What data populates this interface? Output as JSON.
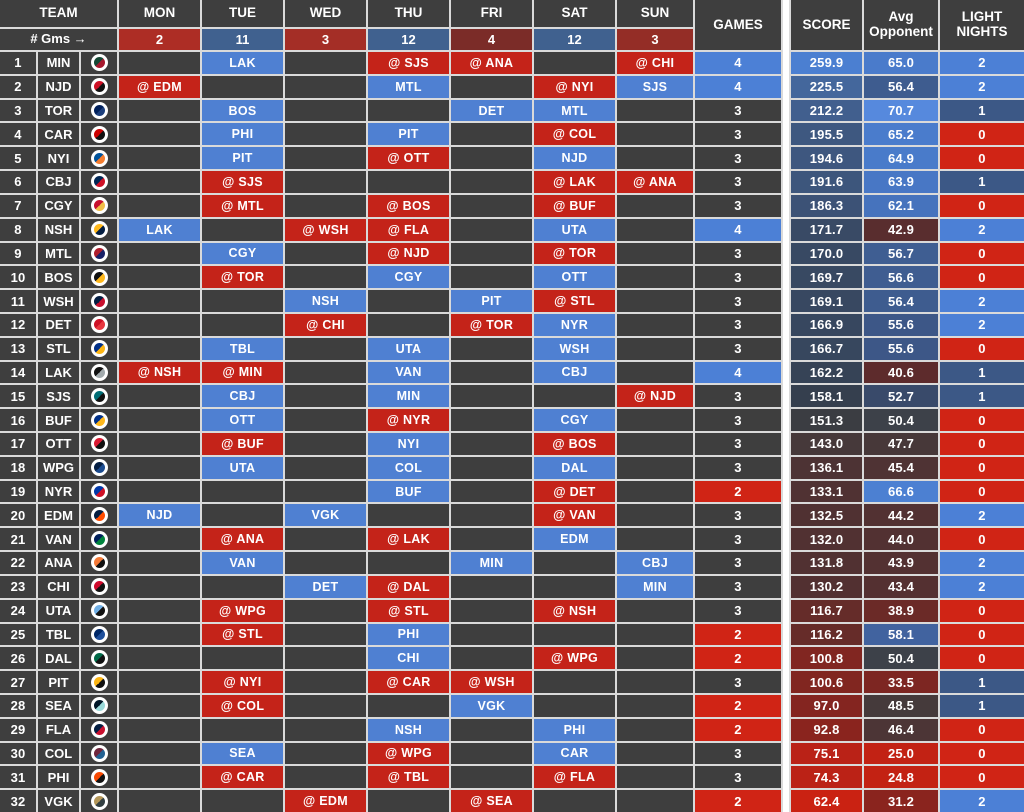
{
  "header": {
    "team_label": "TEAM",
    "gms_label": "# Gms →",
    "days": [
      "MON",
      "TUE",
      "WED",
      "THU",
      "FRI",
      "SAT",
      "SUN"
    ],
    "day_counts": [
      "2",
      "11",
      "3",
      "12",
      "4",
      "12",
      "3"
    ],
    "day_count_colors": [
      "#ad2d25",
      "#40618f",
      "#a42e26",
      "#40618f",
      "#7b2c28",
      "#40618f",
      "#942d26"
    ],
    "games_label": "GAMES",
    "score_label": "SCORE",
    "avg_opponent_label": "Avg Opponent",
    "light_nights_label": "LIGHT NIGHTS"
  },
  "colors": {
    "home": "#4f80d2",
    "away": "#c42319",
    "cell_bg": "#3e3e3e",
    "grid_line": "#dadada",
    "games_high": "#4c80d6",
    "games_low": "#d02415",
    "light_high": "#4c80d6",
    "light_mid": "#3c5886",
    "light_low": "#d02415"
  },
  "rows": [
    {
      "rank": "1",
      "team": "MIN",
      "logo": [
        "#154734",
        "#a6192e"
      ],
      "days": [
        null,
        {
          "opp": "LAK"
        },
        null,
        {
          "opp": "SJS",
          "away": true
        },
        {
          "opp": "ANA",
          "away": true
        },
        null,
        {
          "opp": "CHI",
          "away": true
        }
      ],
      "games": "4",
      "games_bg": "#4c80d6",
      "score": "259.9",
      "score_bg": "#4b7fd1",
      "avg": "65.0",
      "avg_bg": "#4a7bcb",
      "light": "2",
      "light_bg": "#4c80d6"
    },
    {
      "rank": "2",
      "team": "NJD",
      "logo": [
        "#ce1126",
        "#111111"
      ],
      "days": [
        {
          "opp": "EDM",
          "away": true
        },
        null,
        null,
        {
          "opp": "MTL"
        },
        null,
        {
          "opp": "NYI",
          "away": true
        },
        {
          "opp": "SJS"
        }
      ],
      "games": "4",
      "games_bg": "#4c80d6",
      "score": "225.5",
      "score_bg": "#44679c",
      "avg": "56.4",
      "avg_bg": "#3e5c8f",
      "light": "2",
      "light_bg": "#4c80d6"
    },
    {
      "rank": "3",
      "team": "TOR",
      "logo": [
        "#00205b",
        "#1c3f7d"
      ],
      "days": [
        null,
        {
          "opp": "BOS"
        },
        null,
        null,
        {
          "opp": "DET"
        },
        {
          "opp": "MTL"
        },
        null
      ],
      "games": "3",
      "games_bg": null,
      "score": "212.2",
      "score_bg": "#415f8e",
      "avg": "70.7",
      "avg_bg": "#5689dd",
      "light": "1",
      "light_bg": "#3c5886"
    },
    {
      "rank": "4",
      "team": "CAR",
      "logo": [
        "#cc0000",
        "#111111"
      ],
      "days": [
        null,
        {
          "opp": "PHI"
        },
        null,
        {
          "opp": "PIT"
        },
        null,
        {
          "opp": "COL",
          "away": true
        },
        null
      ],
      "games": "3",
      "games_bg": null,
      "score": "195.5",
      "score_bg": "#3e5880",
      "avg": "65.2",
      "avg_bg": "#4a7ccc",
      "light": "0",
      "light_bg": "#d02415"
    },
    {
      "rank": "5",
      "team": "NYI",
      "logo": [
        "#00539b",
        "#f47d30"
      ],
      "days": [
        null,
        {
          "opp": "PIT"
        },
        null,
        {
          "opp": "OTT",
          "away": true
        },
        null,
        {
          "opp": "NJD"
        },
        null
      ],
      "games": "3",
      "games_bg": null,
      "score": "194.6",
      "score_bg": "#3e577f",
      "avg": "64.9",
      "avg_bg": "#497bca",
      "light": "0",
      "light_bg": "#d02415"
    },
    {
      "rank": "6",
      "team": "CBJ",
      "logo": [
        "#002654",
        "#ce1126"
      ],
      "days": [
        null,
        {
          "opp": "SJS",
          "away": true
        },
        null,
        null,
        null,
        {
          "opp": "LAK",
          "away": true
        },
        {
          "opp": "ANA",
          "away": true
        }
      ],
      "games": "3",
      "games_bg": null,
      "score": "191.6",
      "score_bg": "#3d567c",
      "avg": "63.9",
      "avg_bg": "#4877c5",
      "light": "1",
      "light_bg": "#3c5886"
    },
    {
      "rank": "7",
      "team": "CGY",
      "logo": [
        "#c8102e",
        "#f1be48"
      ],
      "days": [
        null,
        {
          "opp": "MTL",
          "away": true
        },
        null,
        {
          "opp": "BOS",
          "away": true
        },
        null,
        {
          "opp": "BUF",
          "away": true
        },
        null
      ],
      "games": "3",
      "games_bg": null,
      "score": "186.3",
      "score_bg": "#3c5276",
      "avg": "62.1",
      "avg_bg": "#4673bd",
      "light": "0",
      "light_bg": "#d02415"
    },
    {
      "rank": "8",
      "team": "NSH",
      "logo": [
        "#ffb81c",
        "#041e42"
      ],
      "days": [
        {
          "opp": "LAK"
        },
        null,
        {
          "opp": "WSH",
          "away": true
        },
        {
          "opp": "FLA",
          "away": true
        },
        null,
        {
          "opp": "UTA"
        },
        null
      ],
      "games": "4",
      "games_bg": "#4c80d6",
      "score": "171.7",
      "score_bg": "#394a65",
      "avg": "42.9",
      "avg_bg": "#592d2e",
      "light": "2",
      "light_bg": "#4c80d6"
    },
    {
      "rank": "9",
      "team": "MTL",
      "logo": [
        "#af1e2d",
        "#192168"
      ],
      "days": [
        null,
        {
          "opp": "CGY"
        },
        null,
        {
          "opp": "NJD",
          "away": true
        },
        null,
        {
          "opp": "TOR",
          "away": true
        },
        null
      ],
      "games": "3",
      "games_bg": null,
      "score": "170.0",
      "score_bg": "#384963",
      "avg": "56.7",
      "avg_bg": "#3f5e92",
      "light": "0",
      "light_bg": "#d02415"
    },
    {
      "rank": "10",
      "team": "BOS",
      "logo": [
        "#111111",
        "#ffb81c"
      ],
      "days": [
        null,
        {
          "opp": "TOR",
          "away": true
        },
        null,
        {
          "opp": "CGY"
        },
        null,
        {
          "opp": "OTT"
        },
        null
      ],
      "games": "3",
      "games_bg": null,
      "score": "169.7",
      "score_bg": "#384962",
      "avg": "56.6",
      "avg_bg": "#3f5d91",
      "light": "0",
      "light_bg": "#d02415"
    },
    {
      "rank": "11",
      "team": "WSH",
      "logo": [
        "#041e42",
        "#c8102e"
      ],
      "days": [
        null,
        null,
        {
          "opp": "NSH"
        },
        null,
        {
          "opp": "PIT"
        },
        {
          "opp": "STL",
          "away": true
        },
        null
      ],
      "games": "3",
      "games_bg": null,
      "score": "169.1",
      "score_bg": "#384861",
      "avg": "56.4",
      "avg_bg": "#3e5c8f",
      "light": "2",
      "light_bg": "#4c80d6"
    },
    {
      "rank": "12",
      "team": "DET",
      "logo": [
        "#ce1126",
        "#e8373f"
      ],
      "days": [
        null,
        null,
        {
          "opp": "CHI",
          "away": true
        },
        null,
        {
          "opp": "TOR",
          "away": true
        },
        {
          "opp": "NYR"
        },
        null
      ],
      "games": "3",
      "games_bg": null,
      "score": "166.9",
      "score_bg": "#37475f",
      "avg": "55.6",
      "avg_bg": "#3d5787",
      "light": "2",
      "light_bg": "#4c80d6"
    },
    {
      "rank": "13",
      "team": "STL",
      "logo": [
        "#002f87",
        "#fcb514"
      ],
      "days": [
        null,
        {
          "opp": "TBL"
        },
        null,
        {
          "opp": "UTA"
        },
        null,
        {
          "opp": "WSH"
        },
        null
      ],
      "games": "3",
      "games_bg": null,
      "score": "166.7",
      "score_bg": "#37475e",
      "avg": "55.6",
      "avg_bg": "#3d5787",
      "light": "0",
      "light_bg": "#d02415"
    },
    {
      "rank": "14",
      "team": "LAK",
      "logo": [
        "#111111",
        "#a2aaad"
      ],
      "days": [
        {
          "opp": "NSH",
          "away": true
        },
        {
          "opp": "MIN",
          "away": true
        },
        null,
        {
          "opp": "VAN"
        },
        null,
        {
          "opp": "CBJ"
        },
        null
      ],
      "games": "4",
      "games_bg": "#4c80d6",
      "score": "162.2",
      "score_bg": "#364356",
      "avg": "40.6",
      "avg_bg": "#5d2b2c",
      "light": "1",
      "light_bg": "#3c5886"
    },
    {
      "rank": "15",
      "team": "SJS",
      "logo": [
        "#006d75",
        "#111111"
      ],
      "days": [
        null,
        {
          "opp": "CBJ"
        },
        null,
        {
          "opp": "MIN"
        },
        null,
        null,
        {
          "opp": "NJD",
          "away": true
        }
      ],
      "games": "3",
      "games_bg": null,
      "score": "158.1",
      "score_bg": "#353f4e",
      "avg": "52.7",
      "avg_bg": "#394a6a",
      "light": "1",
      "light_bg": "#3c5886"
    },
    {
      "rank": "16",
      "team": "BUF",
      "logo": [
        "#003087",
        "#ffb81c"
      ],
      "days": [
        null,
        {
          "opp": "OTT"
        },
        null,
        {
          "opp": "NYR",
          "away": true
        },
        null,
        {
          "opp": "CGY"
        },
        null
      ],
      "games": "3",
      "games_bg": null,
      "score": "151.3",
      "score_bg": "#3b3d42",
      "avg": "50.4",
      "avg_bg": "#3d4149",
      "light": "0",
      "light_bg": "#d02415"
    },
    {
      "rank": "17",
      "team": "OTT",
      "logo": [
        "#da1a32",
        "#111111"
      ],
      "days": [
        null,
        {
          "opp": "BUF",
          "away": true
        },
        null,
        {
          "opp": "NYI"
        },
        null,
        {
          "opp": "BOS",
          "away": true
        },
        null
      ],
      "games": "3",
      "games_bg": null,
      "score": "143.0",
      "score_bg": "#46393a",
      "avg": "47.7",
      "avg_bg": "#473839",
      "light": "0",
      "light_bg": "#d02415"
    },
    {
      "rank": "18",
      "team": "WPG",
      "logo": [
        "#041e42",
        "#1b4b8f"
      ],
      "days": [
        null,
        {
          "opp": "UTA"
        },
        null,
        {
          "opp": "COL"
        },
        null,
        {
          "opp": "DAL"
        },
        null
      ],
      "games": "3",
      "games_bg": null,
      "score": "136.1",
      "score_bg": "#4d3334",
      "avg": "45.4",
      "avg_bg": "#4f3334",
      "light": "0",
      "light_bg": "#d02415"
    },
    {
      "rank": "19",
      "team": "NYR",
      "logo": [
        "#0038a8",
        "#ce1126"
      ],
      "days": [
        null,
        null,
        null,
        {
          "opp": "BUF"
        },
        null,
        {
          "opp": "DET",
          "away": true
        },
        null
      ],
      "games": "2",
      "games_bg": "#d02415",
      "score": "133.1",
      "score_bg": "#503233",
      "avg": "66.6",
      "avg_bg": "#4c80d2",
      "light": "0",
      "light_bg": "#d02415"
    },
    {
      "rank": "20",
      "team": "EDM",
      "logo": [
        "#041e42",
        "#ff4c00"
      ],
      "days": [
        {
          "opp": "NJD"
        },
        null,
        {
          "opp": "VGK"
        },
        null,
        null,
        {
          "opp": "VAN",
          "away": true
        },
        null
      ],
      "games": "3",
      "games_bg": null,
      "score": "132.5",
      "score_bg": "#503132",
      "avg": "44.2",
      "avg_bg": "#523132",
      "light": "2",
      "light_bg": "#4c80d6"
    },
    {
      "rank": "21",
      "team": "VAN",
      "logo": [
        "#00205b",
        "#00843d"
      ],
      "days": [
        null,
        {
          "opp": "ANA",
          "away": true
        },
        null,
        {
          "opp": "LAK",
          "away": true
        },
        null,
        {
          "opp": "EDM"
        },
        null
      ],
      "games": "3",
      "games_bg": null,
      "score": "132.0",
      "score_bg": "#513132",
      "avg": "44.0",
      "avg_bg": "#523132",
      "light": "0",
      "light_bg": "#d02415"
    },
    {
      "rank": "22",
      "team": "ANA",
      "logo": [
        "#f47a38",
        "#111111"
      ],
      "days": [
        null,
        {
          "opp": "VAN"
        },
        null,
        null,
        {
          "opp": "MIN"
        },
        null,
        {
          "opp": "CBJ"
        }
      ],
      "games": "3",
      "games_bg": null,
      "score": "131.8",
      "score_bg": "#513132",
      "avg": "43.9",
      "avg_bg": "#533132",
      "light": "2",
      "light_bg": "#4c80d6"
    },
    {
      "rank": "23",
      "team": "CHI",
      "logo": [
        "#cf0a2c",
        "#111111"
      ],
      "days": [
        null,
        null,
        {
          "opp": "DET"
        },
        {
          "opp": "DAL",
          "away": true
        },
        null,
        null,
        {
          "opp": "MIN"
        }
      ],
      "games": "3",
      "games_bg": null,
      "score": "130.2",
      "score_bg": "#523031",
      "avg": "43.4",
      "avg_bg": "#543031",
      "light": "2",
      "light_bg": "#4c80d6"
    },
    {
      "rank": "24",
      "team": "UTA",
      "logo": [
        "#71afe5",
        "#111111"
      ],
      "days": [
        null,
        {
          "opp": "WPG",
          "away": true
        },
        null,
        {
          "opp": "STL",
          "away": true
        },
        null,
        {
          "opp": "NSH",
          "away": true
        },
        null
      ],
      "games": "3",
      "games_bg": null,
      "score": "116.7",
      "score_bg": "#652c29",
      "avg": "38.9",
      "avg_bg": "#6b2a27",
      "light": "0",
      "light_bg": "#d02415"
    },
    {
      "rank": "25",
      "team": "TBL",
      "logo": [
        "#002868",
        "#1e4f9c"
      ],
      "days": [
        null,
        {
          "opp": "STL",
          "away": true
        },
        null,
        {
          "opp": "PHI"
        },
        null,
        null,
        null
      ],
      "games": "2",
      "games_bg": "#d02415",
      "score": "116.2",
      "score_bg": "#662c29",
      "avg": "58.1",
      "avg_bg": "#41639f",
      "light": "0",
      "light_bg": "#d02415"
    },
    {
      "rank": "26",
      "team": "DAL",
      "logo": [
        "#006847",
        "#111111"
      ],
      "days": [
        null,
        null,
        null,
        {
          "opp": "CHI"
        },
        null,
        {
          "opp": "WPG",
          "away": true
        },
        null
      ],
      "games": "2",
      "games_bg": "#d02415",
      "score": "100.8",
      "score_bg": "#812621",
      "avg": "50.4",
      "avg_bg": "#3d4149",
      "light": "0",
      "light_bg": "#d02415"
    },
    {
      "rank": "27",
      "team": "PIT",
      "logo": [
        "#fcb514",
        "#111111"
      ],
      "days": [
        null,
        {
          "opp": "NYI",
          "away": true
        },
        null,
        {
          "opp": "CAR",
          "away": true
        },
        {
          "opp": "WSH",
          "away": true
        },
        null,
        null
      ],
      "games": "3",
      "games_bg": null,
      "score": "100.6",
      "score_bg": "#812620",
      "avg": "33.5",
      "avg_bg": "#7d2622",
      "light": "1",
      "light_bg": "#3c5886"
    },
    {
      "rank": "28",
      "team": "SEA",
      "logo": [
        "#001628",
        "#99d9d9"
      ],
      "days": [
        null,
        {
          "opp": "COL",
          "away": true
        },
        null,
        null,
        {
          "opp": "VGK"
        },
        null,
        null
      ],
      "games": "2",
      "games_bg": "#d02415",
      "score": "97.0",
      "score_bg": "#842520",
      "avg": "48.5",
      "avg_bg": "#453a3b",
      "light": "1",
      "light_bg": "#3c5886"
    },
    {
      "rank": "29",
      "team": "FLA",
      "logo": [
        "#041e42",
        "#c8102e"
      ],
      "days": [
        null,
        null,
        null,
        {
          "opp": "NSH"
        },
        null,
        {
          "opp": "PHI"
        },
        null
      ],
      "games": "2",
      "games_bg": "#d02415",
      "score": "92.8",
      "score_bg": "#8a241e",
      "avg": "46.4",
      "avg_bg": "#4c3536",
      "light": "0",
      "light_bg": "#d02415"
    },
    {
      "rank": "30",
      "team": "COL",
      "logo": [
        "#6f263d",
        "#236192"
      ],
      "days": [
        null,
        {
          "opp": "SEA"
        },
        null,
        {
          "opp": "WPG",
          "away": true
        },
        null,
        {
          "opp": "CAR"
        },
        null
      ],
      "games": "3",
      "games_bg": null,
      "score": "75.1",
      "score_bg": "#ba2217",
      "avg": "25.0",
      "avg_bg": "#c22214",
      "light": "0",
      "light_bg": "#d02415"
    },
    {
      "rank": "31",
      "team": "PHI",
      "logo": [
        "#f74902",
        "#111111"
      ],
      "days": [
        null,
        {
          "opp": "CAR",
          "away": true
        },
        null,
        {
          "opp": "TBL",
          "away": true
        },
        null,
        {
          "opp": "FLA",
          "away": true
        },
        null
      ],
      "games": "3",
      "games_bg": null,
      "score": "74.3",
      "score_bg": "#bb2216",
      "avg": "24.8",
      "avg_bg": "#c32213",
      "light": "0",
      "light_bg": "#d02415"
    },
    {
      "rank": "32",
      "team": "VGK",
      "logo": [
        "#b4975a",
        "#333f42"
      ],
      "days": [
        null,
        null,
        {
          "opp": "EDM",
          "away": true
        },
        null,
        {
          "opp": "SEA",
          "away": true
        },
        null,
        null
      ],
      "games": "2",
      "games_bg": "#d02415",
      "score": "62.4",
      "score_bg": "#ca2212",
      "avg": "31.2",
      "avg_bg": "#8a241e",
      "light": "2",
      "light_bg": "#4c80d6"
    }
  ]
}
